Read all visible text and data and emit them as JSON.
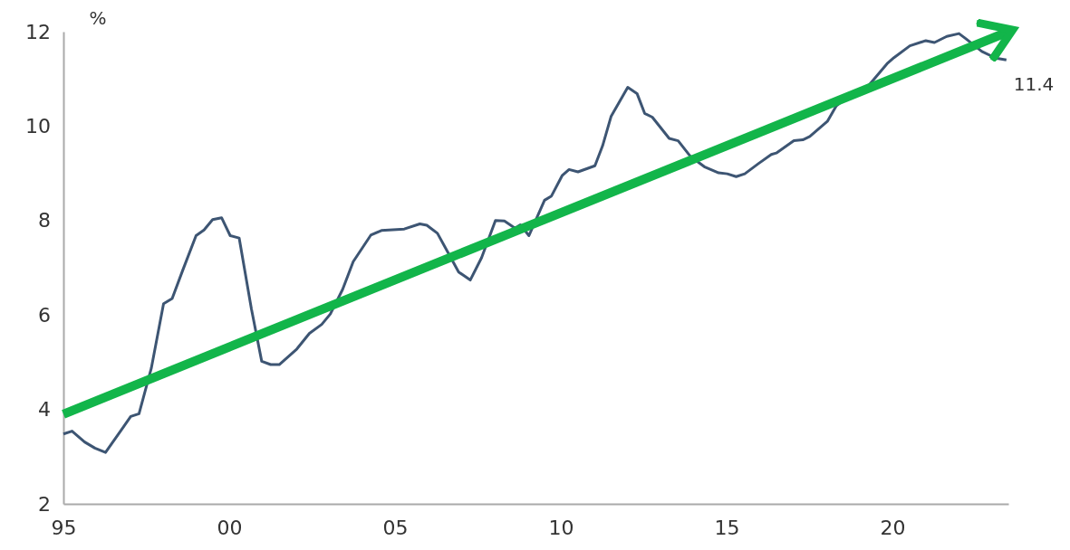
{
  "chart_data": {
    "type": "line",
    "ylabel": "%",
    "xlim": [
      1995,
      2023.5
    ],
    "ylim": [
      2,
      12
    ],
    "xticks": [
      {
        "value": 1995,
        "label": "95"
      },
      {
        "value": 2000,
        "label": "00"
      },
      {
        "value": 2005,
        "label": "05"
      },
      {
        "value": 2010,
        "label": "10"
      },
      {
        "value": 2015,
        "label": "15"
      },
      {
        "value": 2020,
        "label": "20"
      }
    ],
    "yticks": [
      2,
      4,
      6,
      8,
      10,
      12
    ],
    "grid": false,
    "marker": "none",
    "line_style": "solid",
    "annotations": [
      {
        "text": "11.4",
        "x": 2023.44,
        "y": 11.4
      }
    ],
    "series": [
      {
        "color": "#3d5573",
        "x": [
          1995.0,
          1995.26,
          1995.64,
          1995.95,
          1996.27,
          1996.75,
          1997.03,
          1997.28,
          1997.65,
          1998.02,
          1998.28,
          1998.6,
          1999.0,
          1999.24,
          1999.5,
          1999.77,
          2000.03,
          2000.3,
          2000.67,
          2000.98,
          2001.25,
          2001.51,
          2002.04,
          2002.42,
          2002.79,
          2003.05,
          2003.42,
          2003.74,
          2004.27,
          2004.59,
          2005.28,
          2005.75,
          2005.96,
          2006.28,
          2006.6,
          2006.92,
          2007.27,
          2007.61,
          2008.03,
          2008.3,
          2008.62,
          2008.78,
          2009.04,
          2009.51,
          2009.72,
          2010.04,
          2010.25,
          2010.52,
          2011.03,
          2011.26,
          2011.52,
          2012.02,
          2012.3,
          2012.53,
          2012.76,
          2013.27,
          2013.54,
          2013.91,
          2014.33,
          2014.76,
          2015.02,
          2015.29,
          2015.55,
          2015.97,
          2016.35,
          2016.5,
          2017.03,
          2017.3,
          2017.51,
          2018.04,
          2018.31,
          2018.78,
          2019.31,
          2019.84,
          2020.05,
          2020.53,
          2021.01,
          2021.27,
          2021.64,
          2022.01,
          2022.22,
          2022.7,
          2023.12,
          2023.44
        ],
        "values": [
          3.48,
          3.54,
          3.31,
          3.18,
          3.09,
          3.57,
          3.85,
          3.91,
          4.87,
          6.24,
          6.35,
          6.95,
          7.68,
          7.8,
          8.02,
          8.06,
          7.68,
          7.63,
          6.13,
          5.02,
          4.95,
          4.95,
          5.28,
          5.61,
          5.8,
          6.02,
          6.54,
          7.13,
          7.69,
          7.79,
          7.82,
          7.93,
          7.9,
          7.73,
          7.32,
          6.91,
          6.74,
          7.21,
          8.0,
          7.99,
          7.84,
          7.91,
          7.68,
          8.43,
          8.52,
          8.95,
          9.08,
          9.03,
          9.16,
          9.58,
          10.21,
          10.82,
          10.69,
          10.27,
          10.19,
          9.74,
          9.69,
          9.36,
          9.14,
          9.01,
          8.99,
          8.93,
          8.99,
          9.21,
          9.4,
          9.43,
          9.69,
          9.71,
          9.78,
          10.1,
          10.43,
          10.69,
          10.88,
          11.32,
          11.45,
          11.7,
          11.81,
          11.77,
          11.9,
          11.96,
          11.85,
          11.58,
          11.44,
          11.4
        ]
      },
      {
        "color": "#12b54a",
        "type": "line",
        "x": [
          1995,
          2023.5
        ],
        "values": [
          3.9,
          12.0
        ]
      }
    ]
  }
}
